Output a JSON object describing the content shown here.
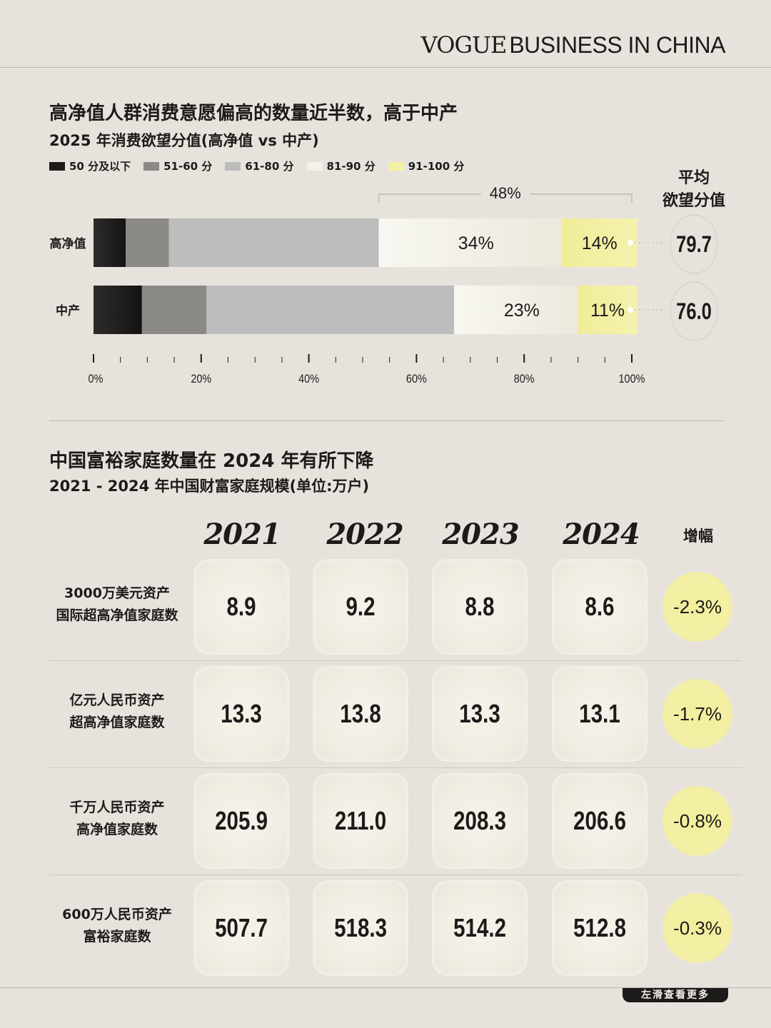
{
  "header": {
    "brand_vogue": "VOGUE",
    "brand_rest": "BUSINESS IN CHINA"
  },
  "section1": {
    "title": "高净值人群消费意愿偏高的数量近半数，高于中产",
    "subtitle": "2025 年消费欲望分值(高净值 vs 中产)",
    "avg_header_line1": "平均",
    "avg_header_line2": "欲望分值"
  },
  "section2": {
    "title": "中国富裕家庭数量在 2024 年有所下降",
    "subtitle": "2021 - 2024 年中国财富家庭规模(单位:万户)",
    "change_header": "增幅"
  },
  "footer": {
    "swipe_label": "左滑查看更多"
  },
  "colors": {
    "background": "#e7e3dc",
    "dark": "#1d1b1a",
    "yellow": "#f3f0a4"
  },
  "chart_data": [
    {
      "type": "bar",
      "orientation": "horizontal-stacked",
      "categories": [
        "高净值",
        "中产"
      ],
      "legend": [
        "50 分及以下",
        "51-60 分",
        "61-80 分",
        "81-90 分",
        "91-100 分"
      ],
      "legend_colors": [
        "#1d1b1a",
        "#8c8a87",
        "#bcbcbc",
        "#f3f2ea",
        "#f3f0a4"
      ],
      "series": [
        {
          "name": "50 分及以下",
          "values": [
            6,
            9
          ]
        },
        {
          "name": "51-60 分",
          "values": [
            8,
            12
          ]
        },
        {
          "name": "61-80 分",
          "values": [
            39,
            46
          ]
        },
        {
          "name": "81-90 分",
          "values": [
            34,
            23
          ]
        },
        {
          "name": "91-100 分",
          "values": [
            14,
            11
          ]
        }
      ],
      "data_labels": [
        {
          "series": "81-90 分",
          "values": [
            "34%",
            "23%"
          ]
        },
        {
          "series": "91-100 分",
          "values": [
            "14%",
            "11%"
          ]
        }
      ],
      "bracket_label": "48%",
      "average_scores": [
        "79.7",
        "76.0"
      ],
      "xlim": [
        0,
        100
      ],
      "x_ticks": [
        "0%",
        "20%",
        "40%",
        "60%",
        "80%",
        "100%"
      ],
      "legend_position": "top-left"
    },
    {
      "type": "table",
      "columns": [
        "2021",
        "2022",
        "2023",
        "2024"
      ],
      "change_header": "增幅",
      "rows": [
        {
          "label_line1": "3000万美元资产",
          "label_line2": "国际超高净值家庭数",
          "values": [
            "8.9",
            "9.2",
            "8.8",
            "8.6"
          ],
          "change": "-2.3%"
        },
        {
          "label_line1": "亿元人民币资产",
          "label_line2": "超高净值家庭数",
          "values": [
            "13.3",
            "13.8",
            "13.3",
            "13.1"
          ],
          "change": "-1.7%"
        },
        {
          "label_line1": "千万人民币资产",
          "label_line2": "高净值家庭数",
          "values": [
            "205.9",
            "211.0",
            "208.3",
            "206.6"
          ],
          "change": "-0.8%"
        },
        {
          "label_line1": "600万人民币资产",
          "label_line2": "富裕家庭数",
          "values": [
            "507.7",
            "518.3",
            "514.2",
            "512.8"
          ],
          "change": "-0.3%"
        }
      ]
    }
  ]
}
